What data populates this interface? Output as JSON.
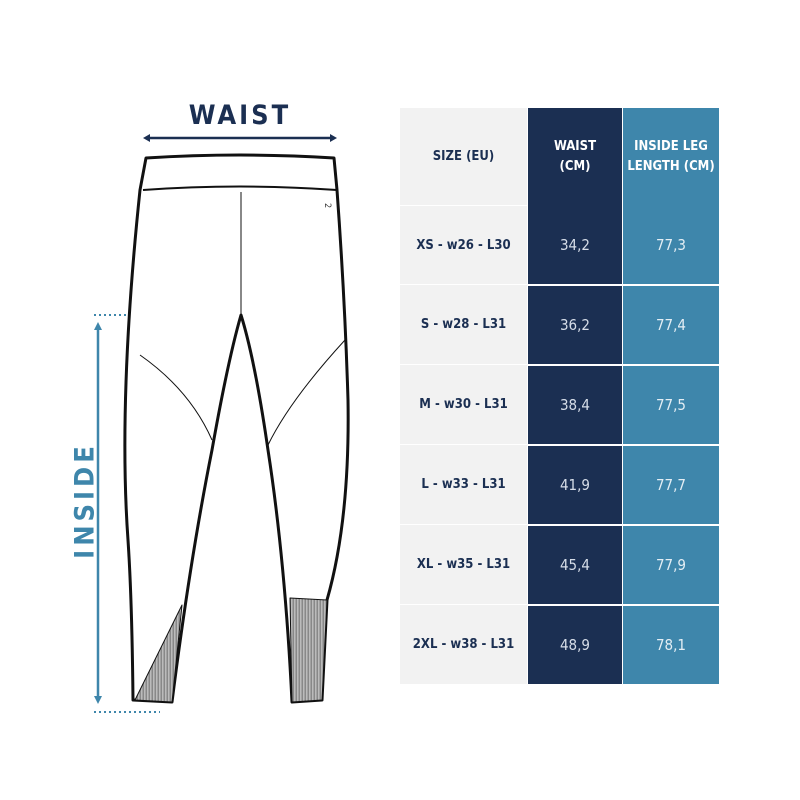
{
  "diagram": {
    "waist_label": "WAIST",
    "inside_label": "INSIDE",
    "logo_mark": "2",
    "colors": {
      "navy": "#1b2f52",
      "teal": "#3e86ab"
    }
  },
  "table": {
    "headers": [
      "SIZE (EU)",
      "WAIST\n(CM)",
      "INSIDE LEG\nLENGTH (CM)"
    ],
    "rows": [
      {
        "size": "XS - w26 - L30",
        "waist": "34,2",
        "inside_leg": "77,3"
      },
      {
        "size": "S - w28 - L31",
        "waist": "36,2",
        "inside_leg": "77,4"
      },
      {
        "size": "M - w30 - L31",
        "waist": "38,4",
        "inside_leg": "77,5"
      },
      {
        "size": "L - w33 - L31",
        "waist": "41,9",
        "inside_leg": "77,7"
      },
      {
        "size": "XL - w35 - L31",
        "waist": "45,4",
        "inside_leg": "77,9"
      },
      {
        "size": "2XL - w38 - L31",
        "waist": "48,9",
        "inside_leg": "78,1"
      }
    ]
  }
}
